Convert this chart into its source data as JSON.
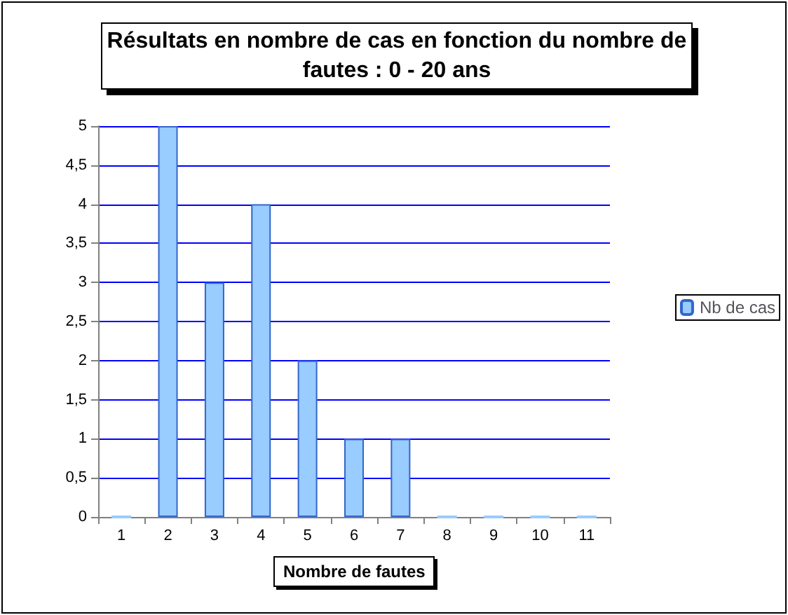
{
  "chart_data": {
    "type": "bar",
    "title": "Résultats en nombre de cas en fonction du nombre de fautes : 0 - 20 ans",
    "xlabel": "Nombre de fautes",
    "categories": [
      "1",
      "2",
      "3",
      "4",
      "5",
      "6",
      "7",
      "8",
      "9",
      "10",
      "11"
    ],
    "series": [
      {
        "name": "Nb de cas",
        "color": "#99ccff",
        "values": [
          0,
          5,
          3,
          4,
          2,
          1,
          1,
          0,
          0,
          0,
          0
        ]
      }
    ],
    "ylim": [
      0,
      5
    ],
    "yticks": [
      0,
      {
        "value": 0.5,
        "label": "0,5"
      },
      1,
      {
        "value": 1.5,
        "label": "1,5"
      },
      2,
      {
        "value": 2.5,
        "label": "2,5"
      },
      3,
      {
        "value": 3.5,
        "label": "3,5"
      },
      4,
      {
        "value": 4.5,
        "label": "4,5"
      },
      5
    ],
    "grid": "y",
    "legend": "right"
  }
}
